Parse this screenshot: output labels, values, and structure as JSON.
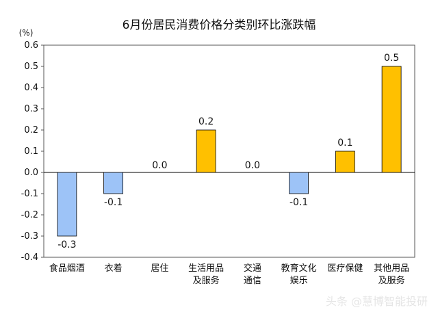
{
  "chart_data": {
    "type": "bar",
    "title": "6月份居民消费价格分类别环比涨跌幅",
    "unit": "(%)",
    "categories": [
      [
        "食品烟酒"
      ],
      [
        "衣着"
      ],
      [
        "居住"
      ],
      [
        "生活用品",
        "及服务"
      ],
      [
        "交通",
        "通信"
      ],
      [
        "教育文化",
        "娱乐"
      ],
      [
        "医疗保健"
      ],
      [
        "其他用品",
        "及服务"
      ]
    ],
    "values": [
      -0.3,
      -0.1,
      0.0,
      0.2,
      0.0,
      -0.1,
      0.1,
      0.5
    ],
    "value_labels": [
      "-0.3",
      "-0.1",
      "0.0",
      "0.2",
      "0.0",
      "-0.1",
      "0.1",
      "0.5"
    ],
    "ylim": [
      -0.4,
      0.6
    ],
    "yticks": [
      "0.6",
      "0.5",
      "0.4",
      "0.3",
      "0.2",
      "0.1",
      "0.0",
      "-0.1",
      "-0.2",
      "-0.3",
      "-0.4"
    ],
    "ytick_values": [
      0.6,
      0.5,
      0.4,
      0.3,
      0.2,
      0.1,
      0.0,
      -0.1,
      -0.2,
      -0.3,
      -0.4
    ],
    "grid": false,
    "colors": {
      "positive": "#FFC000",
      "negative": "#9DC3F7",
      "stroke": "#000000"
    }
  },
  "watermark": "头条 @慧博智能投研"
}
